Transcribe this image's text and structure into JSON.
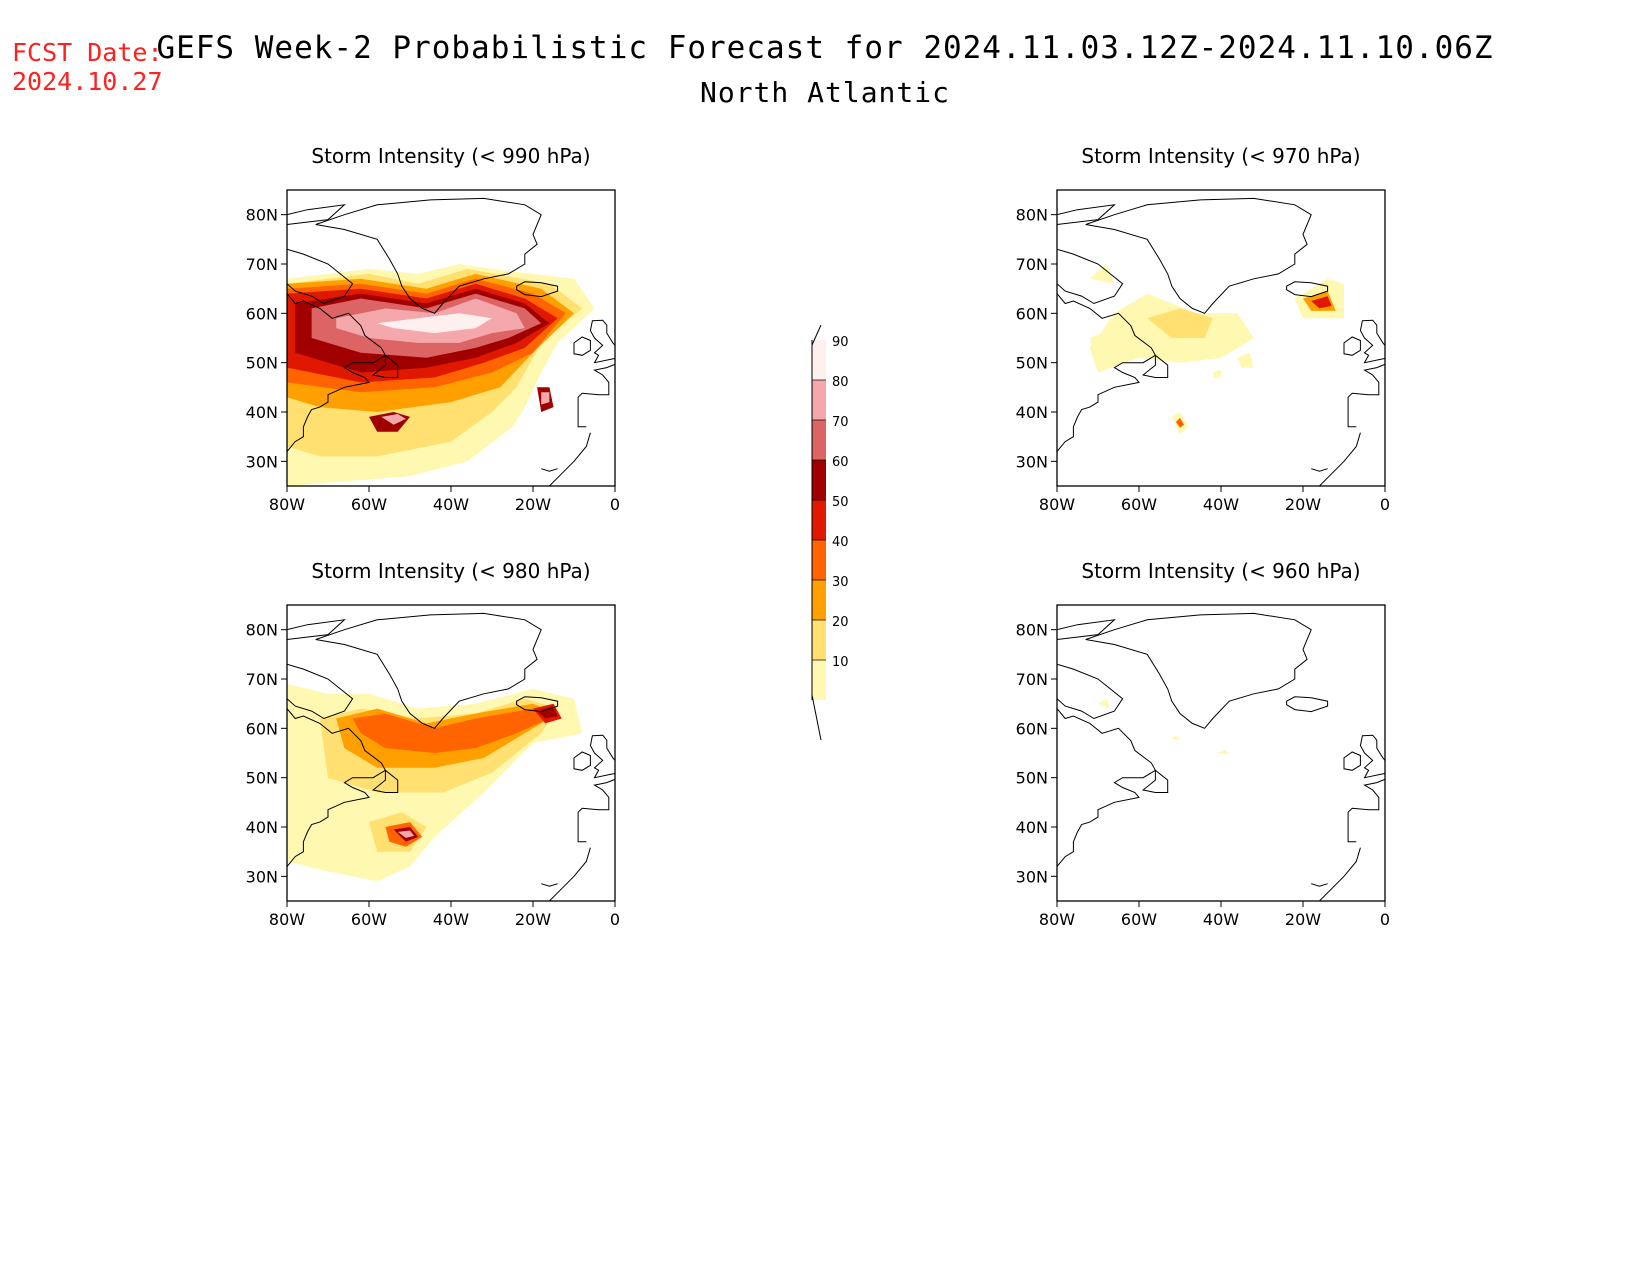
{
  "header": {
    "fcst_label": "FCST Date:",
    "fcst_date": "2024.10.27",
    "title": "GEFS Week-2 Probabilistic Forecast for 2024.11.03.12Z-2024.11.10.06Z",
    "subtitle": "North Atlantic"
  },
  "axes": {
    "lat_ticks": [
      "80N",
      "70N",
      "60N",
      "50N",
      "40N",
      "30N"
    ],
    "lon_ticks": [
      "80W",
      "60W",
      "40W",
      "20W",
      "0"
    ],
    "lon_range": [
      -80,
      0
    ],
    "lat_range": [
      25,
      85
    ]
  },
  "panels": [
    {
      "title": "Storm Intensity (< 990 hPa)",
      "threshold": "990 hPa",
      "coverage": "widespread",
      "peak_percent": 90
    },
    {
      "title": "Storm Intensity (< 970 hPa)",
      "threshold": "970 hPa",
      "coverage": "scattered",
      "peak_percent": 60
    },
    {
      "title": "Storm Intensity (< 980 hPa)",
      "threshold": "980 hPa",
      "coverage": "moderate",
      "peak_percent": 70
    },
    {
      "title": "Storm Intensity (< 960 hPa)",
      "threshold": "960 hPa",
      "coverage": "isolated",
      "peak_percent": 10
    }
  ],
  "colorbar": {
    "labels": [
      "90",
      "80",
      "70",
      "60",
      "50",
      "40",
      "30",
      "20",
      "10"
    ],
    "colors": [
      "#fff0f0",
      "#f4a8ac",
      "#dc6464",
      "#a00000",
      "#e01800",
      "#ff6400",
      "#ffa000",
      "#ffe070",
      "#fff8b0"
    ]
  },
  "palette": {
    "p10": "#fff8b0",
    "p20": "#ffe070",
    "p30": "#ffa000",
    "p40": "#ff6400",
    "p50": "#e01800",
    "p60": "#a00000",
    "p70": "#dc6464",
    "p80": "#f4a8ac",
    "p90": "#fff0f0",
    "fcst_color": "#ff2020"
  }
}
